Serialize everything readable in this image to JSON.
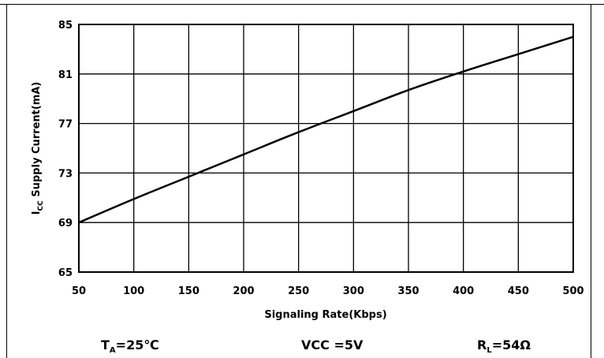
{
  "chart_data": {
    "type": "line",
    "xlabel": "Signaling Rate(Kbps)",
    "ylabel_main": "I",
    "ylabel_sub": "CC",
    "ylabel_rest": " Supply Current(mA)",
    "xlim": [
      50,
      500
    ],
    "ylim": [
      65,
      85
    ],
    "xticks": [
      50,
      100,
      150,
      200,
      250,
      300,
      350,
      400,
      450,
      500
    ],
    "yticks": [
      65,
      69,
      73,
      77,
      81,
      85
    ],
    "grid": true,
    "series": [
      {
        "x": [
          50,
          100,
          150,
          200,
          250,
          300,
          350,
          400,
          450,
          500
        ],
        "y": [
          69.0,
          70.9,
          72.7,
          74.5,
          76.3,
          78.0,
          79.7,
          81.2,
          82.6,
          84.0
        ]
      }
    ]
  },
  "conditions": {
    "ta_main": "T",
    "ta_sub": "A",
    "ta_rest": "=25℃",
    "vcc": "VCC =5V",
    "rl_main": "R",
    "rl_sub": "L",
    "rl_rest": "=54Ω"
  }
}
